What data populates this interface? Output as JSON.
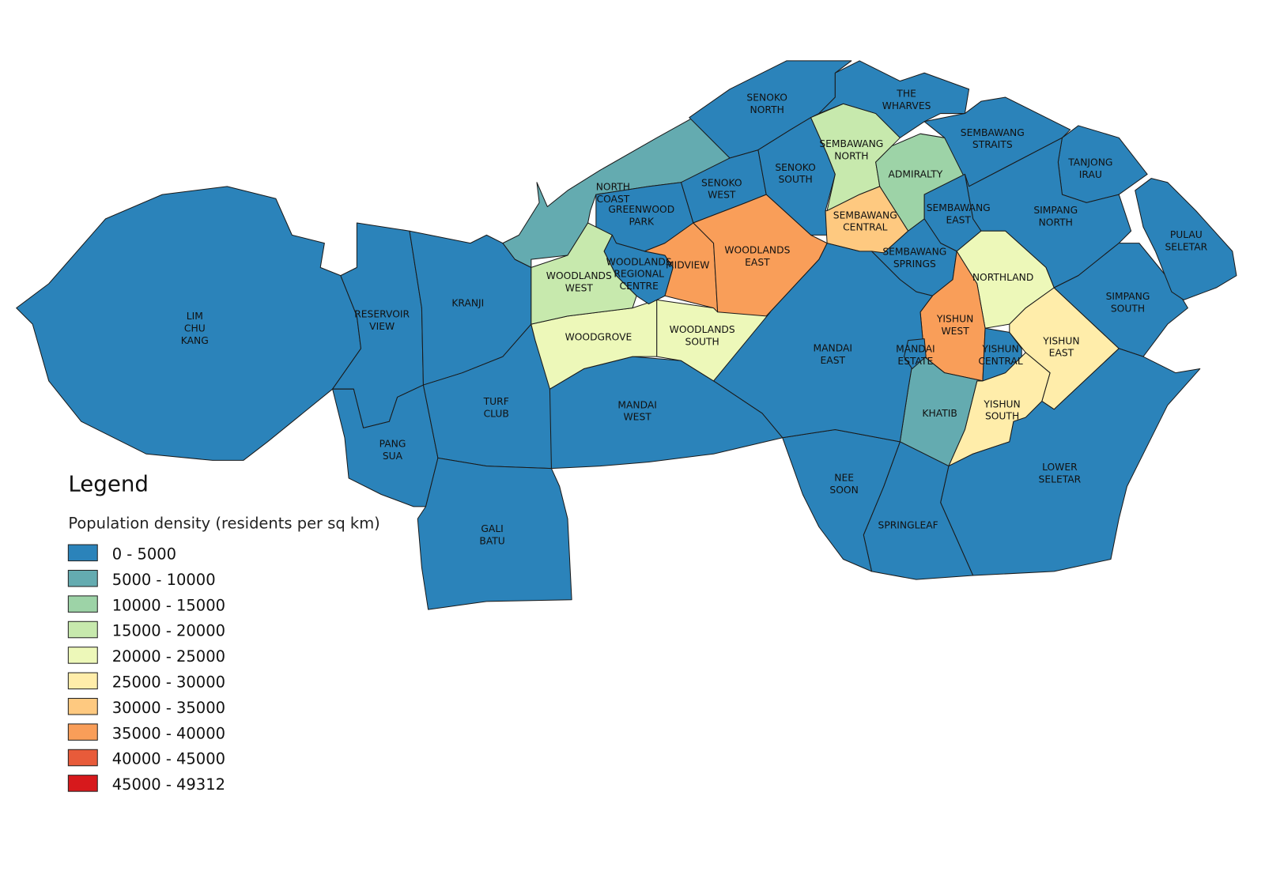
{
  "legend": {
    "title": "Legend",
    "subtitle": "Population density (residents per sq km)",
    "items": [
      {
        "label": "0 - 5000",
        "color": "#2b83ba"
      },
      {
        "label": "5000 - 10000",
        "color": "#64abb0"
      },
      {
        "label": "10000 - 15000",
        "color": "#9dd3a7"
      },
      {
        "label": "15000 - 20000",
        "color": "#c7e9ad"
      },
      {
        "label": "20000 - 25000",
        "color": "#edf8b9"
      },
      {
        "label": "25000 - 30000",
        "color": "#ffedaa"
      },
      {
        "label": "30000 - 35000",
        "color": "#fec980"
      },
      {
        "label": "35000 - 40000",
        "color": "#f99e59"
      },
      {
        "label": "40000 - 45000",
        "color": "#e85b3a"
      },
      {
        "label": "45000 - 49312",
        "color": "#d7191c"
      }
    ]
  },
  "regions": [
    {
      "label": [
        "LIM",
        "CHU",
        "KANG"
      ],
      "color": "#2b83ba"
    },
    {
      "label": [
        "RESERVOIR",
        "VIEW"
      ],
      "color": "#2b83ba"
    },
    {
      "label": [
        "KRANJI"
      ],
      "color": "#2b83ba"
    },
    {
      "label": [
        "PANG",
        "SUA"
      ],
      "color": "#2b83ba"
    },
    {
      "label": [
        "TURF",
        "CLUB"
      ],
      "color": "#2b83ba"
    },
    {
      "label": [
        "GALI",
        "BATU"
      ],
      "color": "#2b83ba"
    },
    {
      "label": [
        "NORTH",
        "COAST"
      ],
      "color": "#64abb0"
    },
    {
      "label": [
        "GREENWOOD",
        "PARK"
      ],
      "color": "#2b83ba"
    },
    {
      "label": [
        "SENOKO",
        "NORTH"
      ],
      "color": "#2b83ba"
    },
    {
      "label": [
        "SENOKO",
        "WEST"
      ],
      "color": "#2b83ba"
    },
    {
      "label": [
        "SENOKO",
        "SOUTH"
      ],
      "color": "#2b83ba"
    },
    {
      "label": [
        "SEMBAWANG",
        "NORTH"
      ],
      "color": "#c7e9ad"
    },
    {
      "label": [
        "THE",
        "WHARVES"
      ],
      "color": "#2b83ba"
    },
    {
      "label": [
        "ADMIRALTY"
      ],
      "color": "#9dd3a7"
    },
    {
      "label": [
        "SEMBAWANG",
        "CENTRAL"
      ],
      "color": "#fec980"
    },
    {
      "label": [
        "SEMBAWANG",
        "STRAITS"
      ],
      "color": "#2b83ba"
    },
    {
      "label": [
        "TANJONG",
        "IRAU"
      ],
      "color": "#2b83ba"
    },
    {
      "label": [
        "SIMPANG",
        "NORTH"
      ],
      "color": "#2b83ba"
    },
    {
      "label": [
        "SEMBAWANG",
        "EAST"
      ],
      "color": "#2b83ba"
    },
    {
      "label": [
        "SEMBAWANG",
        "SPRINGS"
      ],
      "color": "#2b83ba"
    },
    {
      "label": [
        "NORTHLAND"
      ],
      "color": "#edf8b9"
    },
    {
      "label": [
        "YISHUN",
        "WEST"
      ],
      "color": "#f99e59"
    },
    {
      "label": [
        "YISHUN",
        "CENTRAL"
      ],
      "color": "#2b83ba"
    },
    {
      "label": [
        "YISHUN",
        "EAST"
      ],
      "color": "#ffedaa"
    },
    {
      "label": [
        "SIMPANG",
        "SOUTH"
      ],
      "color": "#2b83ba"
    },
    {
      "label": [
        "PULAU",
        "SELETAR"
      ],
      "color": "#2b83ba"
    },
    {
      "label": [
        "YISHUN",
        "SOUTH"
      ],
      "color": "#ffedaa"
    },
    {
      "label": [
        "KHATIB"
      ],
      "color": "#64abb0"
    },
    {
      "label": [
        "LOWER",
        "SELETAR"
      ],
      "color": "#2b83ba"
    },
    {
      "label": [
        "SPRINGLEAF"
      ],
      "color": "#2b83ba"
    },
    {
      "label": [
        "NEE",
        "SOON"
      ],
      "color": "#2b83ba"
    },
    {
      "label": [
        "MANDAI",
        "EAST"
      ],
      "color": "#2b83ba"
    },
    {
      "label": [
        "MANDAI",
        "WEST"
      ],
      "color": "#2b83ba"
    },
    {
      "label": [
        "WOODGROVE"
      ],
      "color": "#edf8b9"
    },
    {
      "label": [
        "WOODLANDS",
        "SOUTH"
      ],
      "color": "#edf8b9"
    },
    {
      "label": [
        "WOODLANDS",
        "WEST"
      ],
      "color": "#c7e9ad"
    },
    {
      "label": [
        "WOODLANDS",
        "REGIONAL",
        "CENTRE"
      ],
      "color": "#2b83ba"
    },
    {
      "label": [
        "MIDVIEW"
      ],
      "color": "#f99e59"
    },
    {
      "label": [
        "WOODLANDS",
        "EAST"
      ],
      "color": "#f99e59"
    },
    {
      "label": [
        "MANDAI",
        "ESTATE"
      ],
      "color": "#2b83ba"
    }
  ]
}
